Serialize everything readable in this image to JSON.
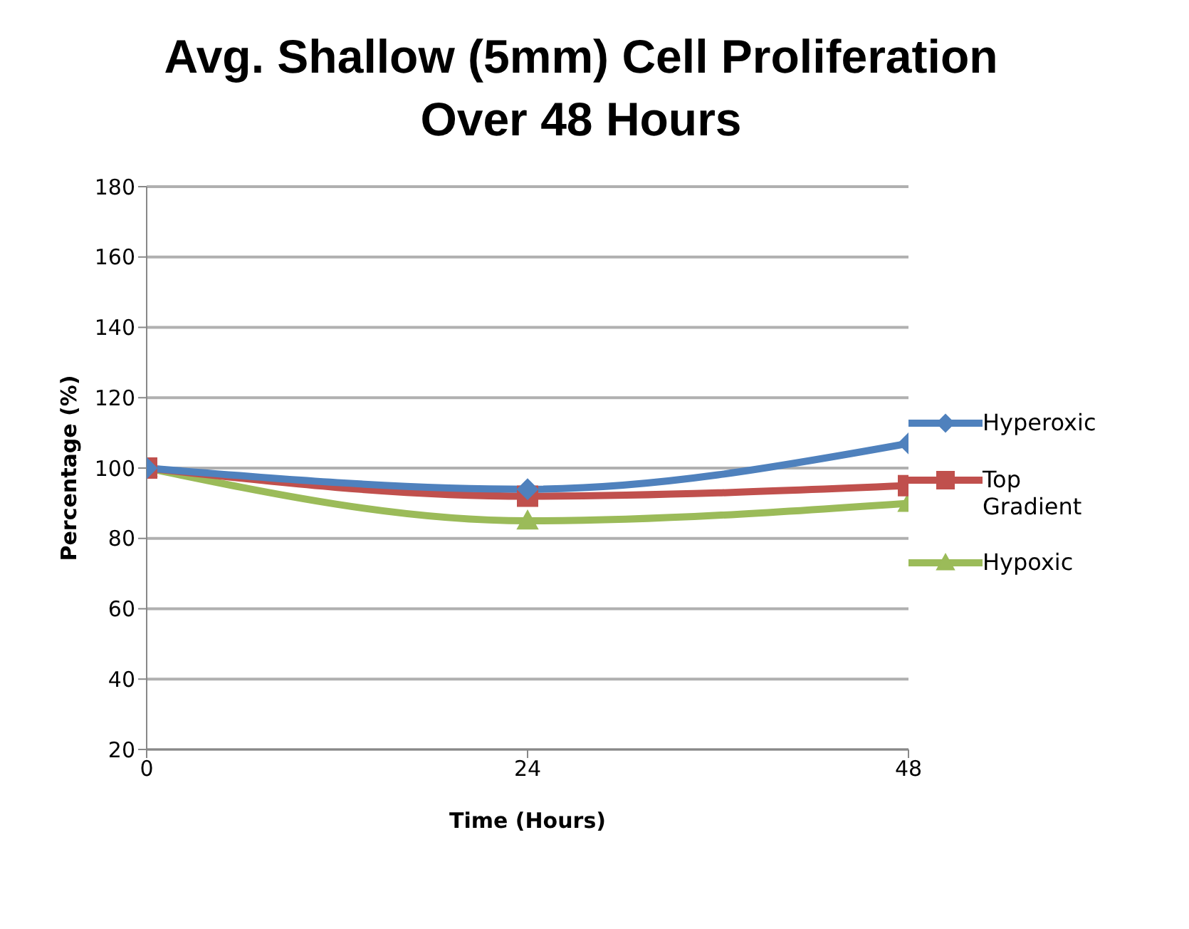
{
  "chart_data": {
    "type": "line",
    "title": "Avg. Shallow (5mm) Cell Proliferation Over 48 Hours",
    "xlabel": "Time (Hours)",
    "ylabel": "Percentage (%)",
    "x": [
      0,
      24,
      48
    ],
    "series": [
      {
        "name": "Hyperoxic",
        "color": "#4f81bd",
        "marker": "diamond",
        "values": [
          100,
          94,
          107
        ]
      },
      {
        "name": "Top Gradient",
        "color": "#c0504d",
        "marker": "square",
        "values": [
          100,
          92,
          95
        ]
      },
      {
        "name": "Hypoxic",
        "color": "#9bbb59",
        "marker": "triangle",
        "values": [
          100,
          85,
          90
        ]
      }
    ],
    "xlim": [
      0,
      48
    ],
    "xticks": [
      0,
      24,
      48
    ],
    "ylim": [
      20,
      180
    ],
    "yticks": [
      20,
      40,
      60,
      80,
      100,
      120,
      140,
      160,
      180
    ],
    "grid": "y",
    "legend": "right",
    "line_style": "solid"
  }
}
